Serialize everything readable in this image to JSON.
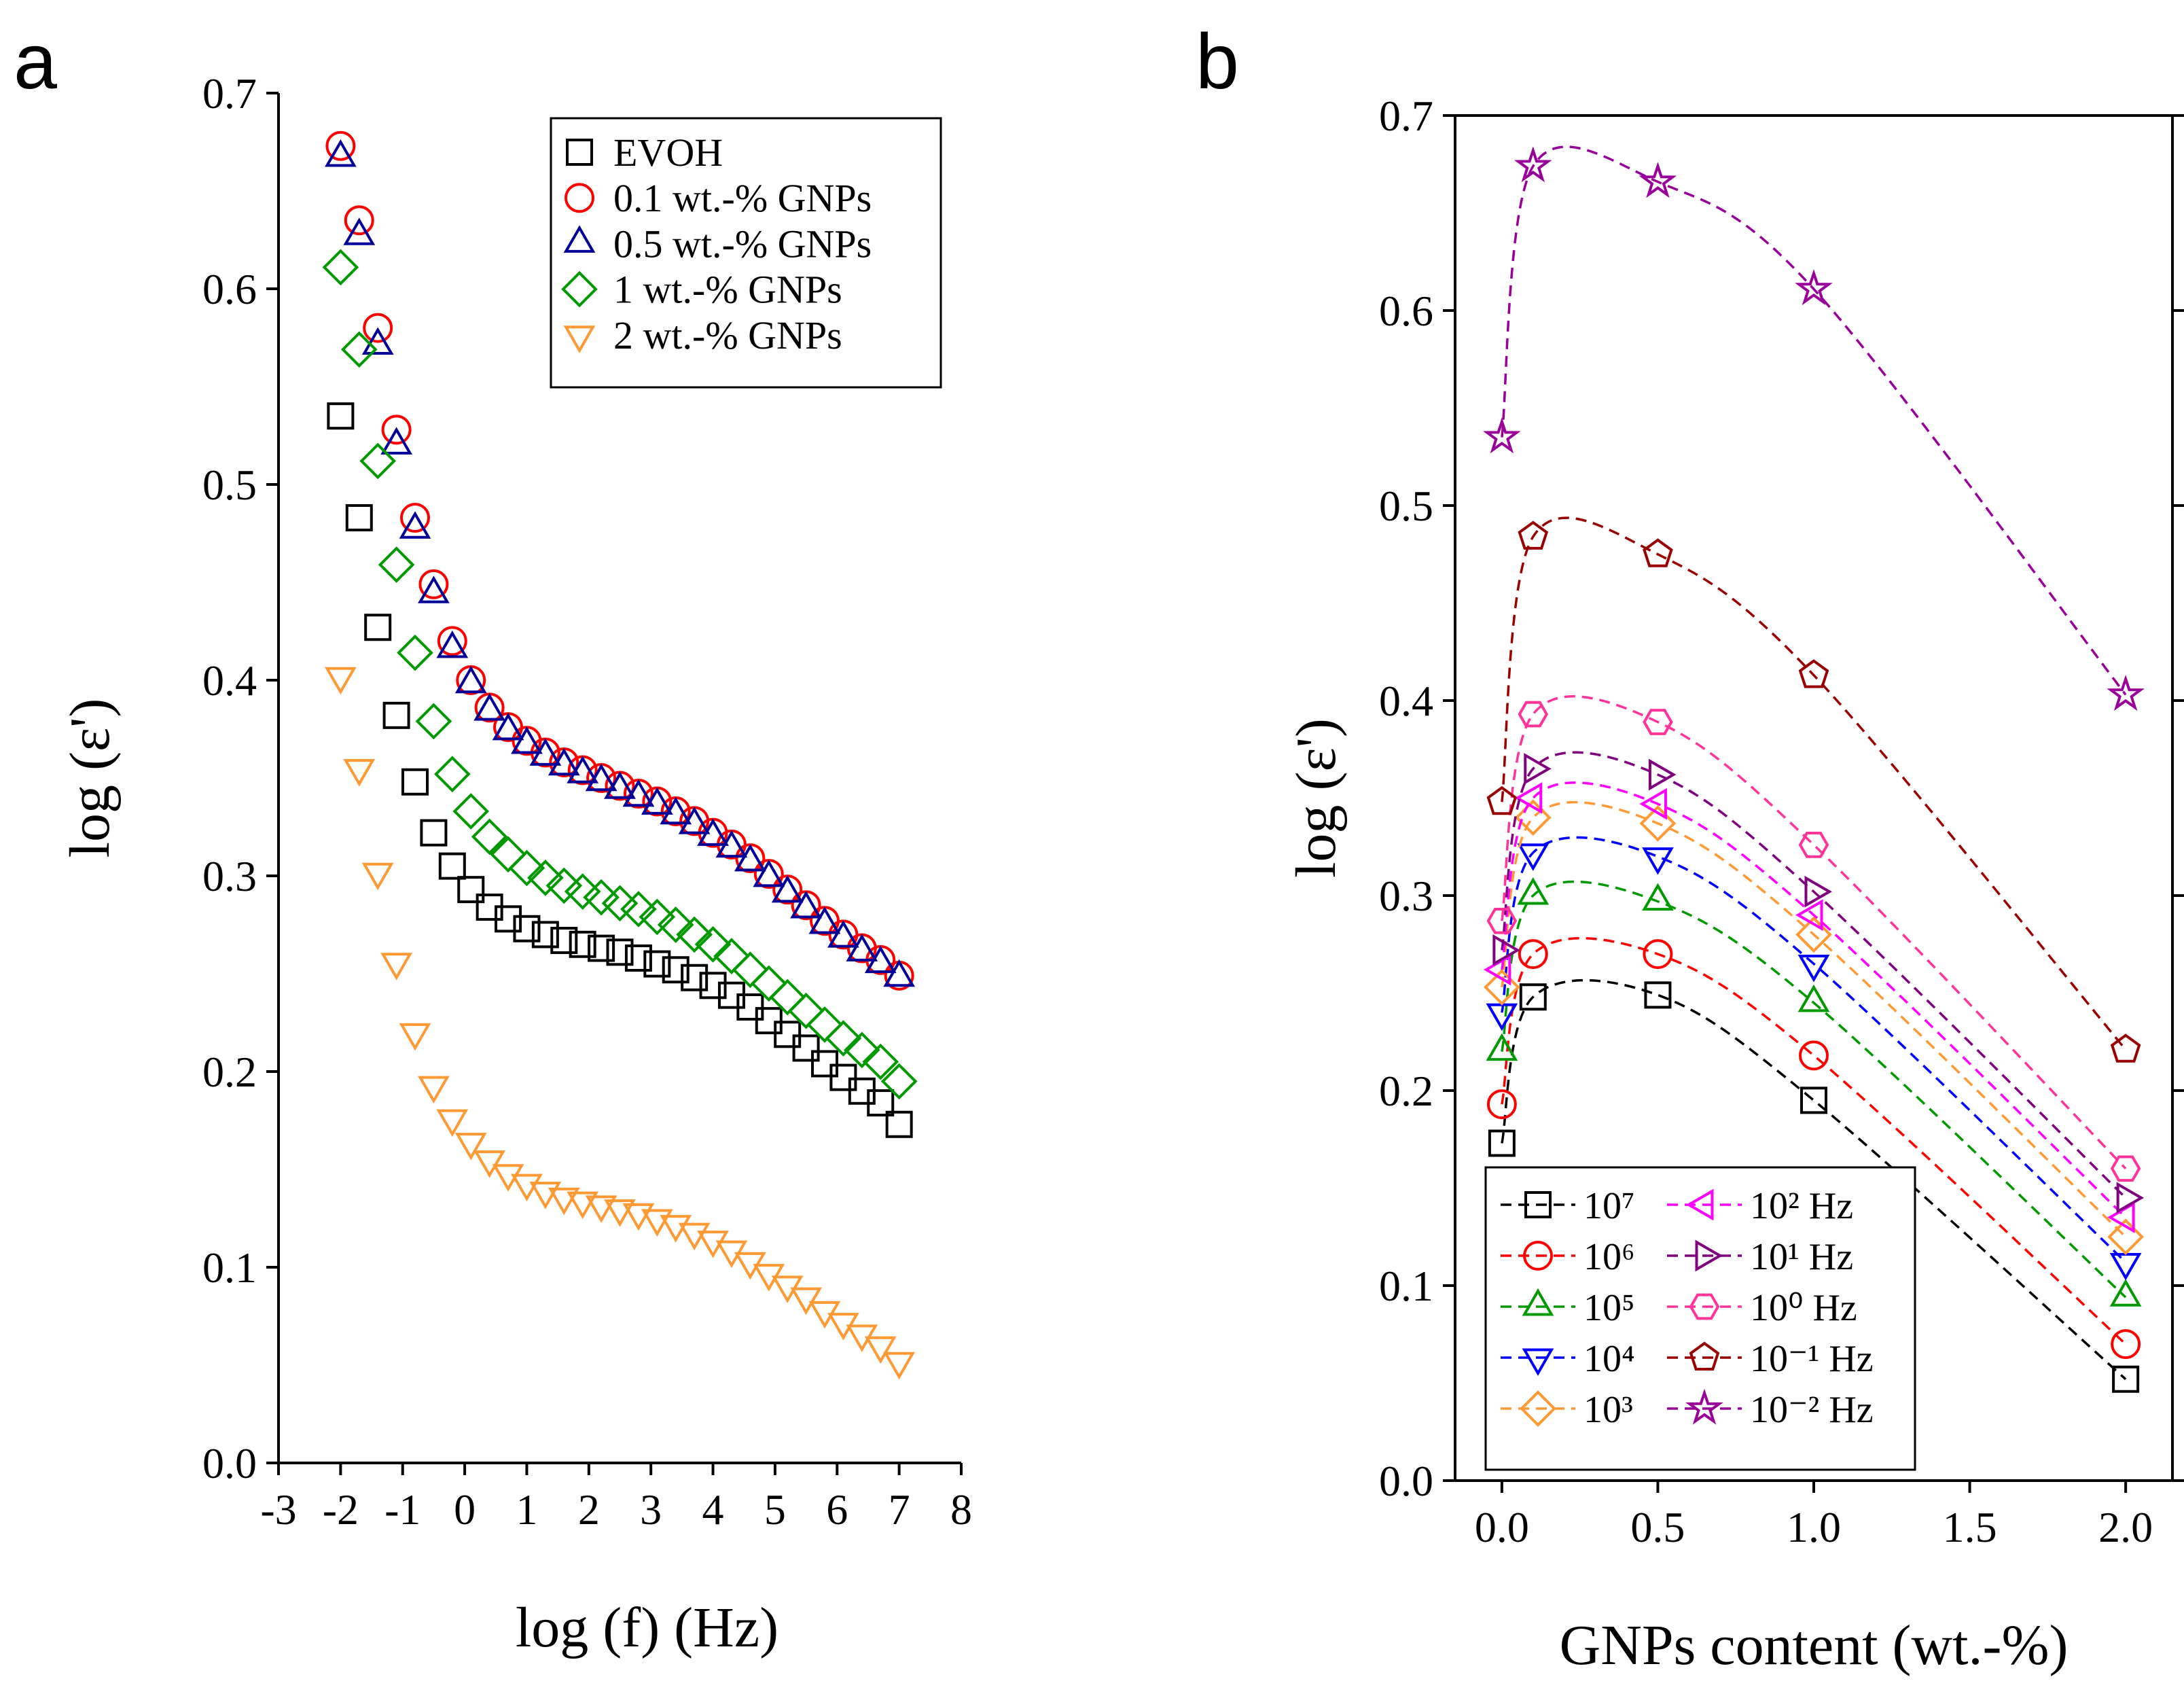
{
  "chart_data": [
    {
      "type": "scatter",
      "panel_label": "a",
      "y_label": "log (ε')",
      "x_label": "log (f) (Hz)",
      "xlim": [
        -3,
        8
      ],
      "ylim": [
        0,
        0.7
      ],
      "xticks": [
        -3,
        -2,
        -1,
        0,
        1,
        2,
        3,
        4,
        5,
        6,
        7,
        8
      ],
      "yticks": [
        {
          "value": 0,
          "label": "0.0"
        },
        0.1,
        0.2,
        0.3,
        0.4,
        0.5,
        0.6,
        0.7
      ],
      "legend": "upper right",
      "x": [
        -2,
        -1.7,
        -1.4,
        -1.1,
        -0.8,
        -0.5,
        -0.2,
        0.1,
        0.4,
        0.7,
        1.0,
        1.3,
        1.6,
        1.9,
        2.2,
        2.5,
        2.8,
        3.1,
        3.4,
        3.7,
        4.0,
        4.3,
        4.6,
        4.9,
        5.2,
        5.5,
        5.8,
        6.1,
        6.4,
        6.7,
        7.0
      ],
      "series": [
        {
          "name": "EVOH",
          "color": "#000000",
          "marker": "square",
          "values": [
            0.535,
            0.483,
            0.427,
            0.382,
            0.348,
            0.322,
            0.305,
            0.293,
            0.284,
            0.278,
            0.273,
            0.27,
            0.267,
            0.265,
            0.263,
            0.261,
            0.258,
            0.255,
            0.252,
            0.248,
            0.244,
            0.239,
            0.233,
            0.226,
            0.219,
            0.212,
            0.204,
            0.197,
            0.19,
            0.184,
            0.173
          ]
        },
        {
          "name": "0.1 wt.-% GNPs",
          "color": "#ff0000",
          "marker": "circle",
          "values": [
            0.673,
            0.635,
            0.58,
            0.528,
            0.483,
            0.449,
            0.42,
            0.4,
            0.386,
            0.376,
            0.369,
            0.363,
            0.358,
            0.354,
            0.35,
            0.346,
            0.342,
            0.338,
            0.333,
            0.328,
            0.322,
            0.316,
            0.309,
            0.301,
            0.293,
            0.285,
            0.277,
            0.27,
            0.263,
            0.257,
            0.249
          ]
        },
        {
          "name": "0.5 wt.-% GNPs",
          "color": "#000099",
          "marker": "triangle-up",
          "values": [
            0.667,
            0.627,
            0.571,
            0.52,
            0.477,
            0.444,
            0.416,
            0.398,
            0.384,
            0.374,
            0.367,
            0.361,
            0.356,
            0.352,
            0.348,
            0.344,
            0.34,
            0.336,
            0.331,
            0.326,
            0.32,
            0.314,
            0.307,
            0.299,
            0.291,
            0.283,
            0.275,
            0.268,
            0.261,
            0.255,
            0.248
          ]
        },
        {
          "name": "1 wt.-% GNPs",
          "color": "#009900",
          "marker": "diamond",
          "values": [
            0.611,
            0.569,
            0.512,
            0.459,
            0.414,
            0.379,
            0.352,
            0.333,
            0.32,
            0.311,
            0.304,
            0.299,
            0.295,
            0.292,
            0.289,
            0.286,
            0.283,
            0.279,
            0.275,
            0.27,
            0.265,
            0.259,
            0.252,
            0.245,
            0.238,
            0.231,
            0.224,
            0.217,
            0.211,
            0.205,
            0.195
          ]
        },
        {
          "name": "2 wt.-% GNPs",
          "color": "#ff9933",
          "marker": "triangle-down",
          "values": [
            0.402,
            0.355,
            0.302,
            0.256,
            0.22,
            0.193,
            0.176,
            0.164,
            0.155,
            0.148,
            0.143,
            0.139,
            0.136,
            0.134,
            0.132,
            0.13,
            0.128,
            0.125,
            0.122,
            0.118,
            0.114,
            0.109,
            0.103,
            0.097,
            0.091,
            0.085,
            0.078,
            0.072,
            0.066,
            0.06,
            0.052
          ]
        }
      ]
    },
    {
      "type": "line",
      "panel_label": "b",
      "y_label": "log (ε')",
      "x_label": "GNPs content (wt.-%)",
      "xlim": [
        -0.15,
        2.15
      ],
      "ylim": [
        0,
        0.7
      ],
      "xticks": [
        {
          "value": 0,
          "label": "0.0"
        },
        0.5,
        {
          "value": 1,
          "label": "1.0"
        },
        1.5,
        {
          "value": 2,
          "label": "2.0"
        }
      ],
      "yticks": [
        {
          "value": 0,
          "label": "0.0"
        },
        0.1,
        0.2,
        0.3,
        0.4,
        0.5,
        0.6,
        0.7
      ],
      "legend": "lower left",
      "line_style": "dashed",
      "smooth": true,
      "x": [
        0,
        0.1,
        0.5,
        1,
        2
      ],
      "series": [
        {
          "name": "10⁷",
          "color": "#000000",
          "marker": "square",
          "values": [
            0.173,
            0.248,
            0.249,
            0.195,
            0.052
          ]
        },
        {
          "name": "10⁶",
          "color": "#ff0000",
          "marker": "circle",
          "values": [
            0.193,
            0.27,
            0.27,
            0.218,
            0.07
          ]
        },
        {
          "name": "10⁵",
          "color": "#009900",
          "marker": "triangle-up",
          "values": [
            0.22,
            0.3,
            0.297,
            0.245,
            0.094
          ]
        },
        {
          "name": "10⁴",
          "color": "#0000ff",
          "marker": "triangle-down",
          "values": [
            0.24,
            0.322,
            0.32,
            0.265,
            0.112
          ]
        },
        {
          "name": "10³",
          "color": "#ff9933",
          "marker": "diamond",
          "values": [
            0.253,
            0.34,
            0.337,
            0.28,
            0.125
          ]
        },
        {
          "name": "10² Hz",
          "color": "#ff00ff",
          "marker": "triangle-left",
          "values": [
            0.262,
            0.35,
            0.347,
            0.29,
            0.135
          ]
        },
        {
          "name": "10¹ Hz",
          "color": "#800080",
          "marker": "triangle-right",
          "values": [
            0.272,
            0.365,
            0.362,
            0.302,
            0.145
          ]
        },
        {
          "name": "10⁰ Hz",
          "color": "#ff3399",
          "marker": "hexagon",
          "values": [
            0.287,
            0.393,
            0.389,
            0.326,
            0.16
          ]
        },
        {
          "name": "10⁻¹ Hz",
          "color": "#990000",
          "marker": "pentagon",
          "values": [
            0.348,
            0.484,
            0.475,
            0.413,
            0.221
          ]
        },
        {
          "name": "10⁻² Hz",
          "color": "#990099",
          "marker": "star",
          "values": [
            0.535,
            0.674,
            0.666,
            0.611,
            0.403
          ]
        }
      ]
    }
  ]
}
